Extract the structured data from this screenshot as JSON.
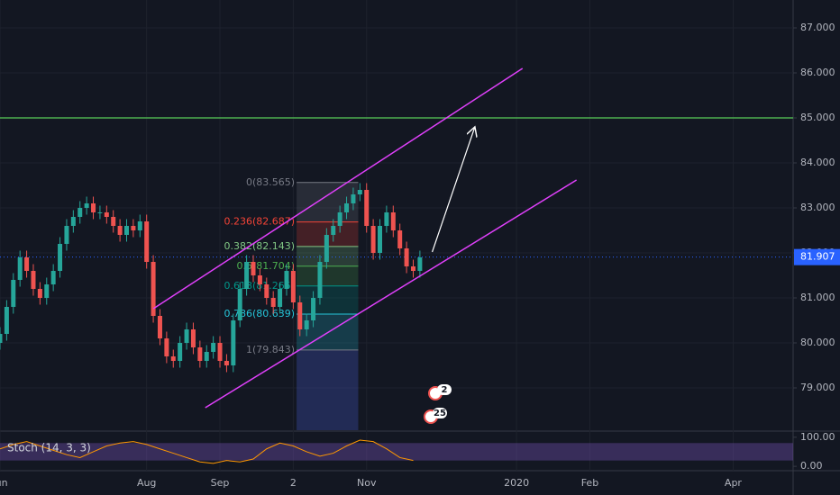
{
  "chart_data": {
    "type": "candlestick",
    "x": [
      0,
      2,
      4,
      6,
      8,
      10,
      12,
      14,
      16,
      18,
      20,
      22,
      24,
      26,
      28,
      30,
      32,
      34,
      36,
      38,
      40,
      42,
      44,
      46,
      48,
      50,
      52,
      54,
      56,
      58,
      60,
      62,
      64,
      66,
      68,
      70,
      72,
      74,
      76,
      78,
      80,
      82,
      84,
      86,
      88,
      90,
      92,
      94,
      96,
      98,
      100,
      102,
      104,
      106,
      108,
      110,
      112,
      114,
      116,
      118,
      120,
      122,
      124,
      126
    ],
    "open": [
      80.0,
      80.2,
      80.8,
      81.4,
      81.9,
      81.6,
      81.2,
      81.0,
      81.3,
      81.6,
      82.2,
      82.6,
      82.8,
      83.0,
      83.1,
      82.9,
      82.9,
      82.8,
      82.6,
      82.4,
      82.6,
      82.5,
      82.7,
      81.8,
      80.6,
      80.1,
      79.7,
      79.6,
      80.0,
      80.3,
      79.9,
      79.6,
      79.8,
      80.0,
      79.6,
      79.5,
      80.5,
      81.2,
      81.8,
      81.5,
      81.3,
      81.0,
      80.8,
      81.2,
      81.6,
      80.9,
      80.3,
      80.5,
      81.0,
      81.8,
      82.4,
      82.6,
      82.9,
      83.1,
      83.3,
      83.4,
      82.6,
      82.0,
      82.6,
      82.9,
      82.5,
      82.1,
      81.7,
      81.6
    ],
    "high": [
      80.35,
      80.95,
      81.55,
      82.05,
      82.05,
      81.75,
      81.35,
      81.45,
      81.75,
      82.35,
      82.75,
      82.95,
      83.15,
      83.25,
      83.25,
      83.05,
      83.05,
      82.95,
      82.75,
      82.75,
      82.75,
      82.85,
      82.85,
      81.95,
      80.75,
      80.25,
      79.85,
      80.15,
      80.45,
      80.45,
      80.05,
      79.95,
      80.15,
      80.15,
      79.75,
      80.65,
      81.35,
      81.95,
      81.95,
      81.65,
      81.45,
      81.15,
      81.35,
      81.75,
      81.75,
      81.05,
      80.65,
      81.15,
      81.95,
      82.55,
      82.75,
      83.05,
      83.25,
      83.45,
      83.55,
      83.55,
      82.75,
      82.75,
      83.05,
      83.05,
      82.65,
      82.25,
      81.85,
      82.05
    ],
    "low": [
      79.85,
      80.05,
      80.65,
      81.25,
      81.45,
      81.05,
      80.85,
      80.85,
      81.15,
      81.45,
      82.05,
      82.45,
      82.65,
      82.85,
      82.75,
      82.75,
      82.65,
      82.45,
      82.25,
      82.25,
      82.35,
      82.35,
      81.65,
      80.45,
      79.95,
      79.55,
      79.45,
      79.45,
      79.85,
      79.75,
      79.45,
      79.45,
      79.65,
      79.45,
      79.35,
      79.35,
      80.35,
      81.05,
      81.35,
      81.15,
      80.85,
      80.65,
      80.65,
      81.05,
      80.75,
      80.15,
      80.15,
      80.35,
      80.85,
      81.65,
      82.25,
      82.45,
      82.75,
      82.95,
      83.15,
      82.45,
      81.85,
      81.85,
      82.45,
      82.35,
      81.95,
      81.55,
      81.45,
      81.45
    ],
    "close": [
      80.2,
      80.8,
      81.4,
      81.9,
      81.6,
      81.2,
      81.0,
      81.3,
      81.6,
      82.2,
      82.6,
      82.8,
      83.0,
      83.1,
      82.9,
      82.9,
      82.8,
      82.6,
      82.4,
      82.6,
      82.5,
      82.7,
      81.8,
      80.6,
      80.1,
      79.7,
      79.6,
      80.0,
      80.3,
      79.9,
      79.6,
      79.8,
      80.0,
      79.6,
      79.5,
      80.5,
      81.2,
      81.8,
      81.5,
      81.3,
      81.0,
      80.8,
      81.2,
      81.6,
      80.9,
      80.3,
      80.5,
      81.0,
      81.8,
      82.4,
      82.6,
      82.9,
      83.1,
      83.3,
      83.4,
      82.6,
      82.0,
      82.6,
      82.9,
      82.5,
      82.1,
      81.7,
      81.6,
      81.9
    ],
    "colors": {
      "up": "#26a69a",
      "down": "#ef5350"
    },
    "xlim": [
      0,
      238
    ],
    "xticks": [
      {
        "value": 0,
        "label": "Jun"
      },
      {
        "value": 44,
        "label": "Aug"
      },
      {
        "value": 66,
        "label": "Sep"
      },
      {
        "value": 88,
        "label": "2"
      },
      {
        "value": 110,
        "label": "Nov"
      },
      {
        "value": 155,
        "label": "2020"
      },
      {
        "value": 177,
        "label": "Feb"
      },
      {
        "value": 220,
        "label": "Apr"
      }
    ],
    "ylim": [
      78.06,
      87.62
    ],
    "yticks": [
      {
        "value": 79,
        "label": "79.000"
      },
      {
        "value": 80,
        "label": "80.000"
      },
      {
        "value": 81,
        "label": "81.000"
      },
      {
        "value": 82,
        "label": "82.000"
      },
      {
        "value": 83,
        "label": "83.000"
      },
      {
        "value": 84,
        "label": "84.000"
      },
      {
        "value": 85,
        "label": "85.000"
      },
      {
        "value": 86,
        "label": "86.000"
      },
      {
        "value": 87,
        "label": "87.000"
      }
    ],
    "grid": true,
    "last_price": {
      "value": 81.907,
      "label": "81.907",
      "color": "#2962ff"
    },
    "horizontal_line": {
      "value": 85,
      "color": "#4caf50"
    },
    "channel": {
      "color": "#e040fb",
      "upper": {
        "x": [
          46,
          156.8
        ],
        "y": [
          80.76,
          86.1
        ]
      },
      "lower": {
        "x": [
          61.6,
          173
        ],
        "y": [
          78.56,
          83.62
        ]
      }
    },
    "arrow": {
      "x": [
        129.7,
        142.4
      ],
      "y": [
        82.02,
        84.78
      ],
      "color": "#ffffff"
    },
    "fib": {
      "x": [
        89,
        107.5
      ],
      "extension_color": "#3f51b5",
      "levels": [
        {
          "value": 83.565,
          "label": "0(83.565)",
          "color": "#787b86"
        },
        {
          "value": 82.687,
          "label": "0.236(82.687)",
          "color": "#f44336"
        },
        {
          "value": 82.143,
          "label": "0.382(82.143)",
          "color": "#81c784"
        },
        {
          "value": 81.704,
          "label": "0.5(81.704)",
          "color": "#4caf50"
        },
        {
          "value": 81.265,
          "label": "0.618(81.265)",
          "color": "#009688"
        },
        {
          "value": 80.639,
          "label": "0.786(80.639)",
          "color": "#26c6da"
        },
        {
          "value": 79.843,
          "label": "1(79.843)",
          "color": "#787b86"
        }
      ]
    },
    "events": [
      "2",
      "25"
    ],
    "indicator": {
      "type": "line",
      "name": "Stoch (14, 3, 3)",
      "color": "#ff9800",
      "x": [
        0,
        4,
        8,
        12,
        16,
        20,
        24,
        28,
        32,
        36,
        40,
        44,
        48,
        52,
        56,
        60,
        64,
        68,
        72,
        76,
        80,
        84,
        88,
        92,
        96,
        100,
        104,
        108,
        112,
        116,
        120,
        124
      ],
      "values": [
        60,
        75,
        85,
        70,
        55,
        40,
        30,
        50,
        70,
        80,
        85,
        75,
        60,
        45,
        30,
        15,
        10,
        20,
        15,
        25,
        60,
        80,
        70,
        50,
        35,
        45,
        70,
        90,
        85,
        60,
        30,
        20
      ],
      "ylim": [
        -12,
        118
      ],
      "yticks": [
        {
          "value": 100,
          "label": "100.00"
        },
        {
          "value": 0,
          "label": "0.00"
        }
      ],
      "band": [
        20,
        80
      ],
      "band_color": "#7e57c2"
    }
  }
}
